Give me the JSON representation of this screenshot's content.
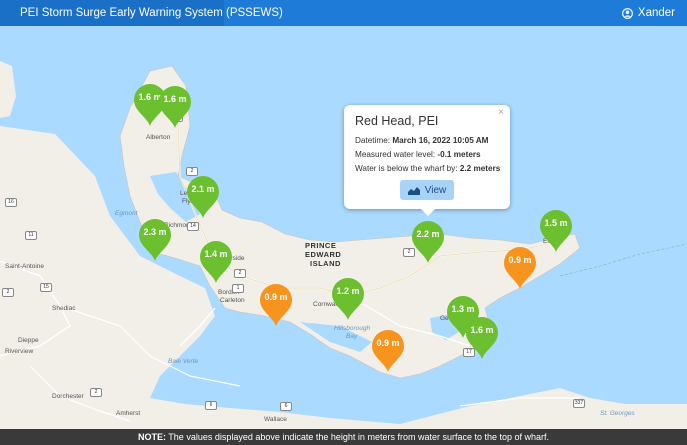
{
  "header": {
    "title": "PEI Storm Surge Early Warning System (PSSEWS)",
    "user": "Xander"
  },
  "footer": {
    "note_label": "NOTE:",
    "note_text": " The values displayed above indicate the height in meters from water surface to the top of wharf."
  },
  "popup": {
    "title": "Red Head, PEI",
    "datetime_label": "Datetime: ",
    "datetime_value": "March 16, 2022 10:05 AM",
    "level_label": "Measured water level: ",
    "level_value": "-0.1 meters",
    "wharf_label": "Water is below the wharf by: ",
    "wharf_value": "2.2 meters",
    "view_label": "View",
    "close": "×"
  },
  "colors": {
    "green": "#6cbf2e",
    "orange": "#f7941d",
    "header": "#1f7bd8",
    "water": "#aadaff",
    "land": "#f2efe9"
  },
  "markers": [
    {
      "label": "1.6 m",
      "color": "green"
    },
    {
      "label": "1.6 m",
      "color": "green"
    },
    {
      "label": "2.1 m",
      "color": "green"
    },
    {
      "label": "2.3 m",
      "color": "green"
    },
    {
      "label": "1.4 m",
      "color": "green"
    },
    {
      "label": "2.2 m",
      "color": "green"
    },
    {
      "label": "1.5 m",
      "color": "green"
    },
    {
      "label": "0.9 m",
      "color": "orange"
    },
    {
      "label": "0.9 m",
      "color": "orange"
    },
    {
      "label": "1.2 m",
      "color": "green"
    },
    {
      "label": "1.3 m",
      "color": "green"
    },
    {
      "label": "1.6 m",
      "color": "green"
    },
    {
      "label": "0.9 m",
      "color": "orange"
    }
  ],
  "places": {
    "alberton": "Alberton",
    "lennox": "Lennox Isl.",
    "flying": "Flying Po.",
    "egmont": "Egmont",
    "richmond": "Richmond",
    "summerside": "Summerside",
    "borden": "Borden-",
    "carleton": "Carleton",
    "pei1": "PRINCE",
    "pei2": "EDWARD",
    "pei3": "ISLAND",
    "cornwall": "Cornwall",
    "hillsborough": "Hillsborough",
    "bay": "Bay",
    "georgetown": "George",
    "elmira": "Elmira",
    "saintantoine": "Saint-Antoine",
    "shediac": "Shediac",
    "dieppe": "Dieppe",
    "riverview": "Riverview",
    "baie": "Baie Verte",
    "dorchester": "Dorchester",
    "amherst": "Amherst",
    "wallace": "Wallace",
    "stgeorges": "St. Georges"
  },
  "shields": [
    "12",
    "2",
    "14",
    "2",
    "1",
    "2",
    "4",
    "17",
    "16",
    "11",
    "15",
    "2",
    "6",
    "337",
    "6",
    "2"
  ]
}
